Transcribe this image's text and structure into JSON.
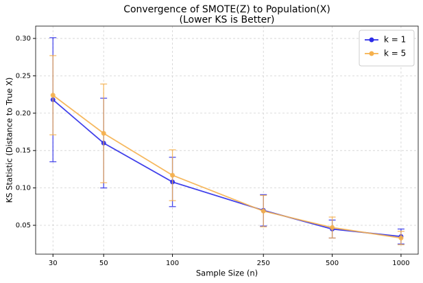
{
  "chart_data": {
    "type": "line",
    "title": "Convergence of SMOTE(Z) to Population(X)",
    "subtitle": "(Lower KS is Better)",
    "x_label": "Sample Size (n)",
    "y_label": "KS Statistic (Distance to True X)",
    "x": [
      30,
      50,
      100,
      250,
      500,
      1000
    ],
    "series": [
      {
        "name": "k = 1",
        "color": "#2b2be8",
        "values": [
          0.218,
          0.16,
          0.108,
          0.07,
          0.045,
          0.035
        ],
        "errors": [
          0.083,
          0.06,
          0.033,
          0.021,
          0.012,
          0.01
        ]
      },
      {
        "name": "k = 5",
        "color": "#f5b04c",
        "values": [
          0.224,
          0.173,
          0.117,
          0.069,
          0.047,
          0.033
        ],
        "errors": [
          0.053,
          0.066,
          0.034,
          0.021,
          0.014,
          0.009
        ]
      }
    ],
    "xscale": "log",
    "xlim": [
      25.2,
      1189
    ],
    "xticks": [
      30,
      50,
      100,
      250,
      500,
      1000
    ],
    "ylim": [
      0.0114,
      0.3165
    ],
    "yticks": [
      0.05,
      {
        "value": 0.1,
        "label": "0.10"
      },
      0.15,
      {
        "value": 0.2,
        "label": "0.20"
      },
      0.25,
      {
        "value": 0.3,
        "label": "0.30"
      }
    ],
    "grid": true,
    "legend": "upper right"
  }
}
